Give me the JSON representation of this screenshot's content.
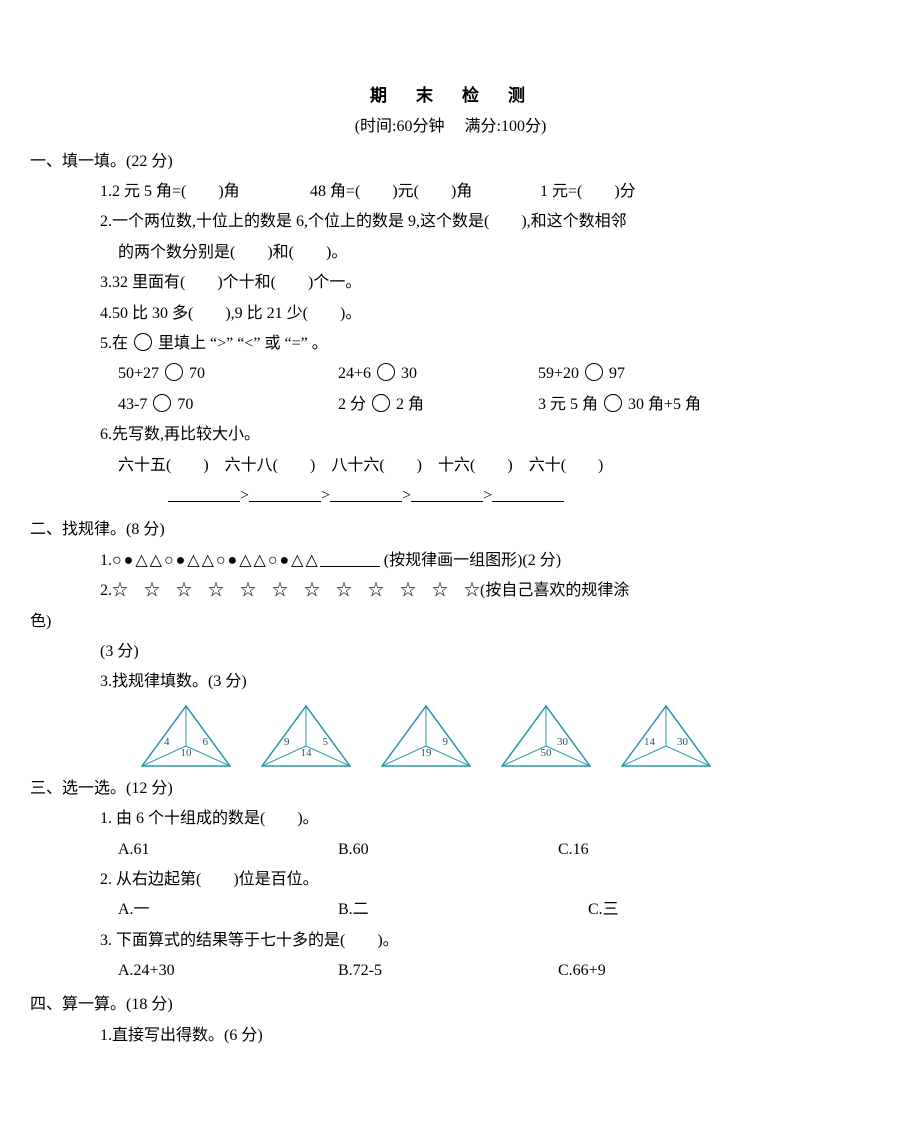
{
  "header": {
    "title": "期　末　检　测",
    "subtitle_prefix": "(时间:",
    "time": "60",
    "time_unit": "分钟",
    "fullmark_label": "满分:",
    "fullmark": "100",
    "fullmark_unit": "分)"
  },
  "s1": {
    "head": "一、填一填。(22 分)",
    "q1": {
      "a": "1.2 元 5 角=(　　)角",
      "b": "48 角=(　　)元(　　)角",
      "c": "1 元=(　　)分"
    },
    "q2": {
      "l1": "2.一个两位数,十位上的数是 6,个位上的数是 9,这个数是(　　),和这个数相邻",
      "l2": "的两个数分别是(　　)和(　　)。"
    },
    "q3": "3.32 里面有(　　)个十和(　　)个一。",
    "q4": "4.50 比 30 多(　　),9 比 21 少(　　)。",
    "q5": {
      "head": "5.在",
      "tail": "里填上 “>” “<” 或 “=” 。",
      "r1": {
        "a": "50+27",
        "b": "70",
        "c": "24+6",
        "d": "30",
        "e": "59+20",
        "f": "97"
      },
      "r2": {
        "a": "43-7",
        "b": "70",
        "c": "2 分",
        "d": "2 角",
        "e": "3 元 5 角",
        "f": "30 角+5 角"
      }
    },
    "q6": {
      "head": "6.先写数,再比较大小。",
      "a": "六十五(　　)",
      "b": "六十八(　　)",
      "c": "八十六(　　)",
      "d": "十六(　　)",
      "e": "六十(　　)"
    }
  },
  "s2": {
    "head": "二、找规律。(8 分)",
    "q1": {
      "shapes": "○●△△○●△△○●△△○●△△",
      "tail": "(按规律画一组图形)(2 分)"
    },
    "q2": {
      "pre": "2.",
      "stars": "☆　☆　☆　☆　☆　☆　☆　☆　☆　☆　☆　☆",
      "tail": "(按自己喜欢的规律涂"
    },
    "q2_wrap": "色)",
    "q2_pts": "(3 分)",
    "q3": "3.找规律填数。(3 分)",
    "triangles": [
      {
        "tl": "4",
        "tr": "6",
        "b": "10",
        "tl_blank": false,
        "tr_blank": false,
        "b_blank": false
      },
      {
        "tl": "9",
        "tr": "5",
        "b": "14",
        "tl_blank": false,
        "tr_blank": false,
        "b_blank": false
      },
      {
        "tl": "",
        "tr": "9",
        "b": "19",
        "tl_blank": true,
        "tr_blank": false,
        "b_blank": false
      },
      {
        "tl": "",
        "tr": "30",
        "b": "50",
        "tl_blank": true,
        "tr_blank": false,
        "b_blank": false
      },
      {
        "tl": "14",
        "tr": "30",
        "b": "",
        "tl_blank": false,
        "tr_blank": false,
        "b_blank": true
      }
    ],
    "tri_stroke": "#2a9aa8",
    "tri_text_color": "#2a5a6c"
  },
  "s3": {
    "head": "三、选一选。(12 分)",
    "q1": {
      "text": "1. 由 6 个十组成的数是(　　)。",
      "a": "A.61",
      "b": "B.60",
      "c": "C.16"
    },
    "q2": {
      "text": "2. 从右边起第(　　)位是百位。",
      "a": "A.一",
      "b": "B.二",
      "c": "C.三"
    },
    "q3": {
      "text": "3. 下面算式的结果等于七十多的是(　　)。",
      "a": "A.24+30",
      "b": "B.72-5",
      "c": "C.66+9"
    }
  },
  "s4": {
    "head": "四、算一算。(18 分)",
    "q1": "1.直接写出得数。(6 分)"
  }
}
